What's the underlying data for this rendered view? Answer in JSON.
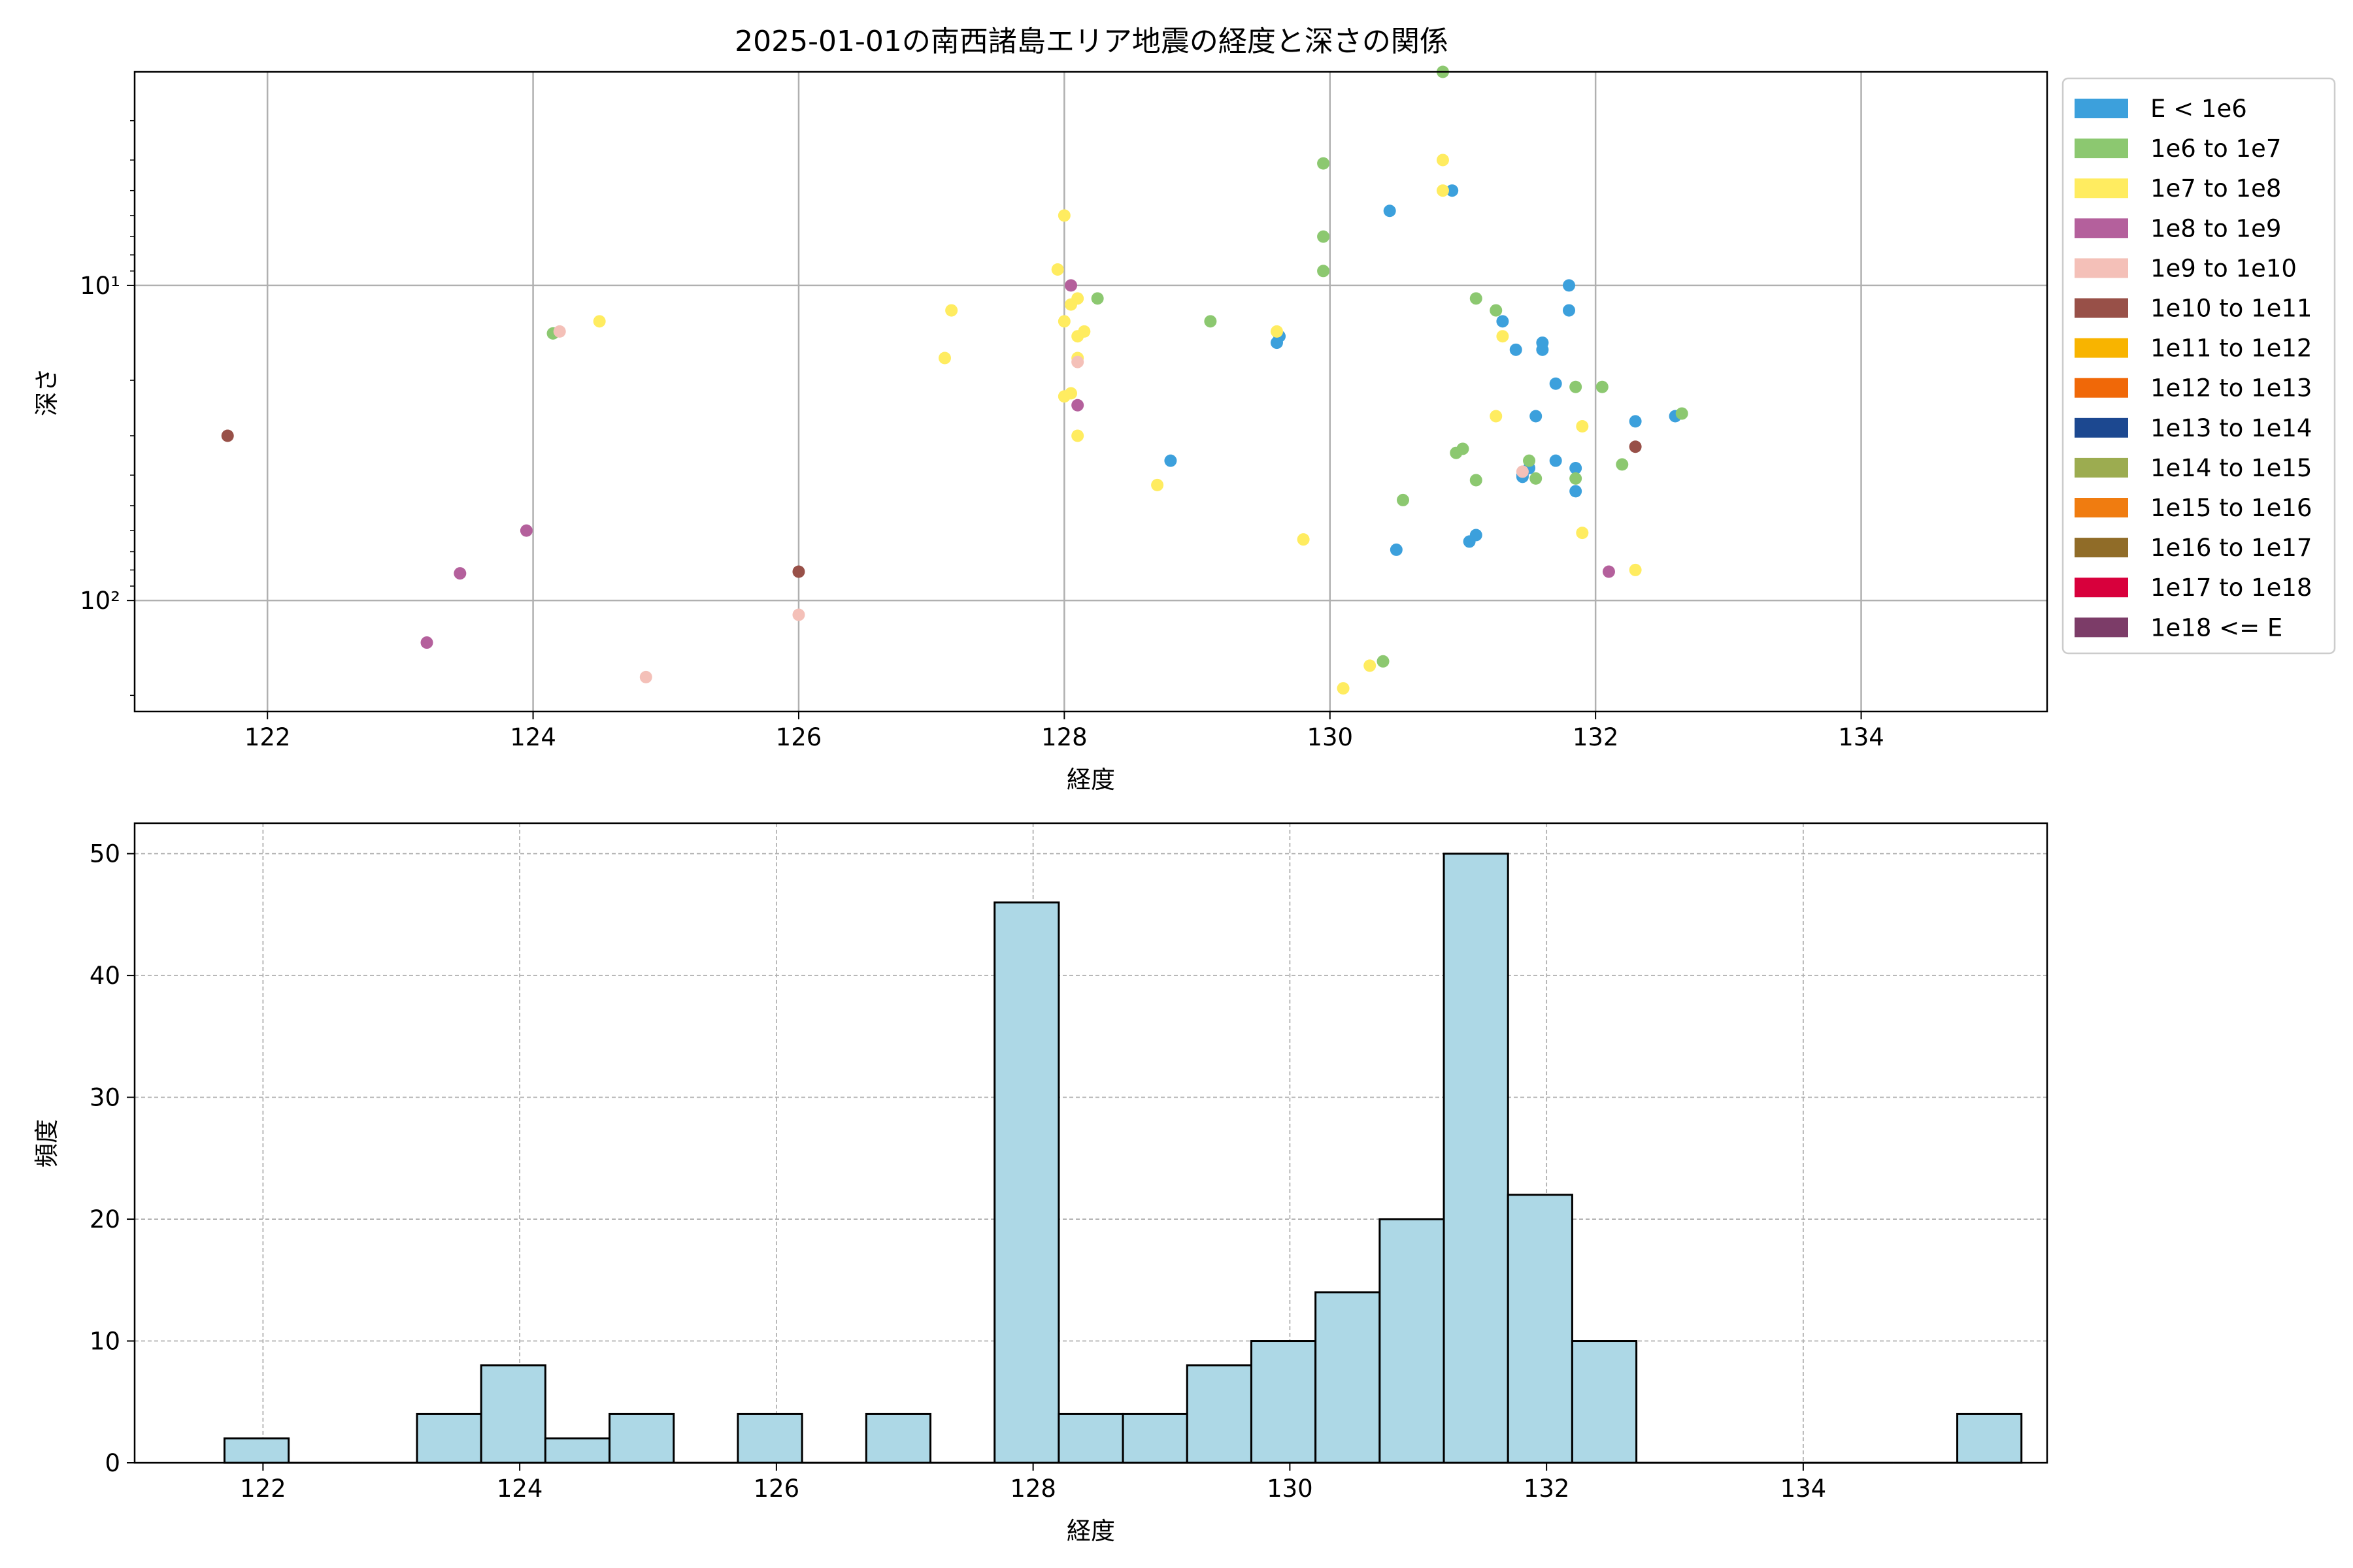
{
  "chart_data": [
    {
      "type": "scatter",
      "title": "2025-01-01の南西諸島エリア地震の経度と深さの関係",
      "xlabel": "経度",
      "ylabel": "深さ",
      "xlim": [
        121.0,
        135.4
      ],
      "ylim": [
        225,
        2.1
      ],
      "y_scale": "log",
      "y_inverted": true,
      "x_ticks": [
        122,
        124,
        126,
        128,
        130,
        132,
        134
      ],
      "y_ticks": [
        {
          "value": 10,
          "label": "10¹"
        },
        {
          "value": 100,
          "label": "10²"
        }
      ],
      "grid": true,
      "legend_position": "outside-right",
      "legend": [
        {
          "label": "E < 1e6",
          "color": "#3ca0dc"
        },
        {
          "label": "1e6 to 1e7",
          "color": "#8cc870"
        },
        {
          "label": "1e7 to 1e8",
          "color": "#ffec60"
        },
        {
          "label": "1e8 to 1e9",
          "color": "#b4609c"
        },
        {
          "label": "1e9 to 1e10",
          "color": "#f4c0b8"
        },
        {
          "label": "1e10 to 1e11",
          "color": "#985048"
        },
        {
          "label": "1e11 to 1e12",
          "color": "#f8b400"
        },
        {
          "label": "1e12 to 1e13",
          "color": "#f06808"
        },
        {
          "label": "1e13 to 1e14",
          "color": "#1c4890"
        },
        {
          "label": "1e14 to 1e15",
          "color": "#9cac50"
        },
        {
          "label": "1e15 to 1e16",
          "color": "#f07c10"
        },
        {
          "label": "1e16 to 1e17",
          "color": "#906c28"
        },
        {
          "label": "1e17 to 1e18",
          "color": "#d8003c"
        },
        {
          "label": "1e18 <= E",
          "color": "#7c3c68"
        }
      ],
      "series": [
        {
          "name": "E < 1e6",
          "color": "#3ca0dc",
          "points": [
            [
              130.45,
              5.8
            ],
            [
              130.92,
              5.0
            ],
            [
              129.6,
              15.2
            ],
            [
              129.62,
              14.5
            ],
            [
              131.3,
              13.0
            ],
            [
              131.4,
              16.0
            ],
            [
              131.6,
              15.2
            ],
            [
              131.6,
              16.0
            ],
            [
              131.7,
              20.5
            ],
            [
              131.8,
              10.0
            ],
            [
              131.8,
              12.0
            ],
            [
              131.55,
              26.0
            ],
            [
              132.3,
              27.0
            ],
            [
              132.6,
              26.0
            ],
            [
              128.8,
              36.0
            ],
            [
              131.45,
              40.0
            ],
            [
              131.5,
              38.0
            ],
            [
              131.7,
              36.0
            ],
            [
              131.85,
              38.0
            ],
            [
              131.85,
              45.0
            ],
            [
              131.45,
              40.5
            ],
            [
              131.1,
              62.0
            ],
            [
              131.05,
              65.0
            ],
            [
              130.5,
              69.0
            ]
          ]
        },
        {
          "name": "1e6 to 1e7",
          "color": "#8cc870",
          "points": [
            [
              130.85,
              2.1
            ],
            [
              129.95,
              4.1
            ],
            [
              129.95,
              7.0
            ],
            [
              129.95,
              9.0
            ],
            [
              124.15,
              14.2
            ],
            [
              128.25,
              11.0
            ],
            [
              129.1,
              13.0
            ],
            [
              131.1,
              11.0
            ],
            [
              131.25,
              12.0
            ],
            [
              131.85,
              21.0
            ],
            [
              132.05,
              21.0
            ],
            [
              132.65,
              25.5
            ],
            [
              131.0,
              33.0
            ],
            [
              130.95,
              34.0
            ],
            [
              131.5,
              36.0
            ],
            [
              131.55,
              41.0
            ],
            [
              131.85,
              41.0
            ],
            [
              132.2,
              37.0
            ],
            [
              131.1,
              41.5
            ],
            [
              130.55,
              48.0
            ],
            [
              130.4,
              156.0
            ]
          ]
        },
        {
          "name": "1e7 to 1e8",
          "color": "#ffec60",
          "points": [
            [
              130.85,
              4.0
            ],
            [
              130.85,
              5.0
            ],
            [
              128.0,
              6.0
            ],
            [
              127.95,
              8.9
            ],
            [
              128.0,
              13.0
            ],
            [
              128.05,
              11.5
            ],
            [
              128.1,
              14.5
            ],
            [
              128.1,
              17.0
            ],
            [
              127.1,
              17.0
            ],
            [
              127.15,
              12.0
            ],
            [
              124.5,
              13.0
            ],
            [
              129.6,
              14.0
            ],
            [
              131.3,
              14.5
            ],
            [
              128.0,
              22.5
            ],
            [
              128.05,
              22.0
            ],
            [
              128.1,
              30.0
            ],
            [
              131.25,
              26.0
            ],
            [
              131.9,
              28.0
            ],
            [
              128.7,
              43.0
            ],
            [
              129.8,
              64.0
            ],
            [
              131.9,
              61.0
            ],
            [
              132.3,
              80.0
            ],
            [
              130.3,
              161.0
            ],
            [
              130.1,
              190.0
            ],
            [
              128.1,
              11.0
            ],
            [
              128.15,
              14.0
            ]
          ]
        },
        {
          "name": "1e8 to 1e9",
          "color": "#b4609c",
          "points": [
            [
              128.05,
              10.0
            ],
            [
              128.1,
              24.0
            ],
            [
              123.95,
              60.0
            ],
            [
              123.45,
              82.0
            ],
            [
              123.2,
              136.0
            ],
            [
              132.1,
              81.0
            ]
          ]
        },
        {
          "name": "1e9 to 1e10",
          "color": "#f4c0b8",
          "points": [
            [
              124.2,
              14.0
            ],
            [
              128.1,
              17.5
            ],
            [
              131.45,
              39.0
            ],
            [
              126.0,
              111.0
            ],
            [
              124.85,
              175.0
            ]
          ]
        },
        {
          "name": "1e10 to 1e11",
          "color": "#985048",
          "points": [
            [
              121.7,
              30.0
            ],
            [
              126.0,
              81.0
            ],
            [
              132.3,
              32.5
            ]
          ]
        }
      ]
    },
    {
      "type": "bar",
      "subtype": "histogram",
      "title": "",
      "xlabel": "経度",
      "ylabel": "頻度",
      "xlim": [
        121.0,
        135.9
      ],
      "ylim": [
        0,
        52.5
      ],
      "x_ticks": [
        122,
        124,
        126,
        128,
        130,
        132,
        134
      ],
      "y_ticks": [
        0,
        10,
        20,
        30,
        40,
        50
      ],
      "grid": true,
      "bar_color": "#add8e6",
      "edge_color": "#000000",
      "bin_start": 121.7,
      "bin_width": 0.5,
      "values": [
        2,
        0,
        0,
        4,
        8,
        2,
        4,
        0,
        4,
        0,
        4,
        0,
        46,
        4,
        4,
        8,
        10,
        14,
        20,
        50,
        22,
        10,
        0,
        0,
        0,
        0,
        0,
        4
      ]
    }
  ]
}
